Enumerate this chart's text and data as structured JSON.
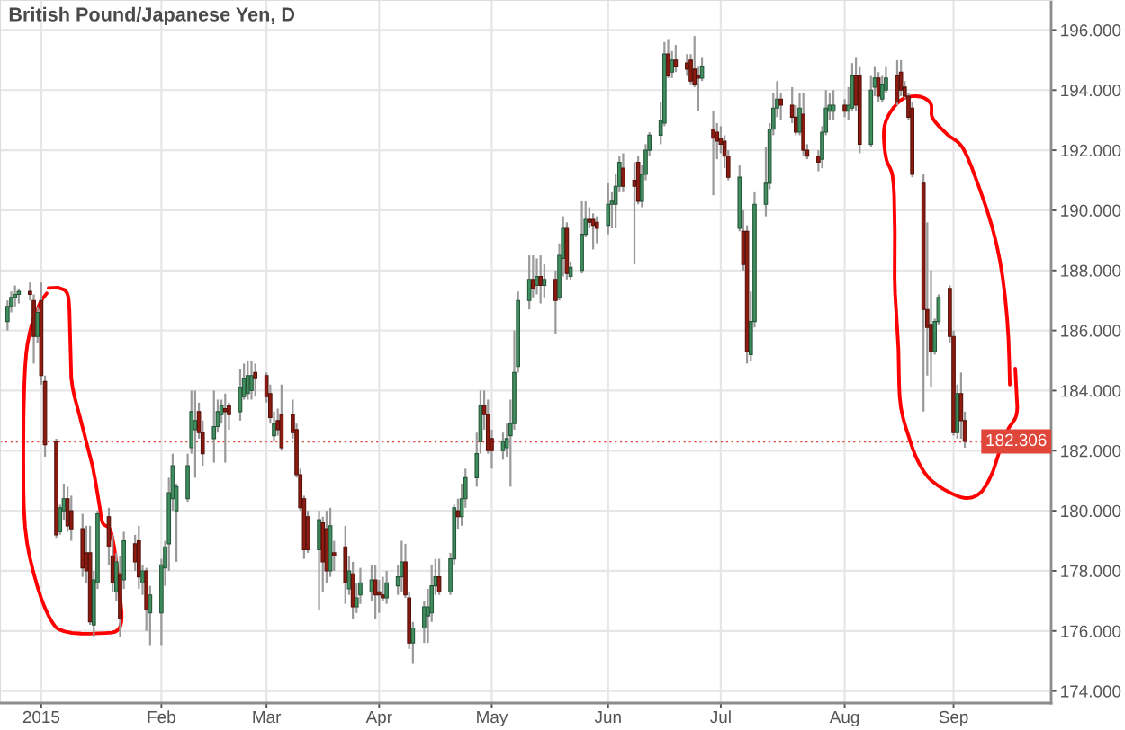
{
  "chart_data": {
    "type": "candlestick",
    "title": "British Pound/Japanese Yen, D",
    "x": [
      "2014-12-23",
      "2014-12-24",
      "2014-12-25",
      "2014-12-26",
      "2014-12-29",
      "2014-12-30",
      "2014-12-31",
      "2015-01-01",
      "2015-01-02",
      "2015-01-05",
      "2015-01-06",
      "2015-01-07",
      "2015-01-08",
      "2015-01-09",
      "2015-01-12",
      "2015-01-13",
      "2015-01-14",
      "2015-01-15",
      "2015-01-16",
      "2015-01-19",
      "2015-01-20",
      "2015-01-21",
      "2015-01-22",
      "2015-01-23",
      "2015-01-26",
      "2015-01-27",
      "2015-01-28",
      "2015-01-29",
      "2015-01-30",
      "2015-02-02",
      "2015-02-03",
      "2015-02-04",
      "2015-02-05",
      "2015-02-06",
      "2015-02-09",
      "2015-02-10",
      "2015-02-11",
      "2015-02-12",
      "2015-02-13",
      "2015-02-16",
      "2015-02-17",
      "2015-02-18",
      "2015-02-19",
      "2015-02-20",
      "2015-02-23",
      "2015-02-24",
      "2015-02-25",
      "2015-02-26",
      "2015-02-27",
      "2015-03-02",
      "2015-03-03",
      "2015-03-04",
      "2015-03-05",
      "2015-03-06",
      "2015-03-09",
      "2015-03-10",
      "2015-03-11",
      "2015-03-12",
      "2015-03-13",
      "2015-03-16",
      "2015-03-17",
      "2015-03-18",
      "2015-03-19",
      "2015-03-20",
      "2015-03-23",
      "2015-03-24",
      "2015-03-25",
      "2015-03-26",
      "2015-03-27",
      "2015-03-30",
      "2015-03-31",
      "2015-04-01",
      "2015-04-02",
      "2015-04-03",
      "2015-04-06",
      "2015-04-07",
      "2015-04-08",
      "2015-04-09",
      "2015-04-10",
      "2015-04-13",
      "2015-04-14",
      "2015-04-15",
      "2015-04-16",
      "2015-04-17",
      "2015-04-20",
      "2015-04-21",
      "2015-04-22",
      "2015-04-23",
      "2015-04-24",
      "2015-04-27",
      "2015-04-28",
      "2015-04-29",
      "2015-04-30",
      "2015-05-01",
      "2015-05-04",
      "2015-05-05",
      "2015-05-06",
      "2015-05-07",
      "2015-05-08",
      "2015-05-11",
      "2015-05-12",
      "2015-05-13",
      "2015-05-14",
      "2015-05-15",
      "2015-05-18",
      "2015-05-19",
      "2015-05-20",
      "2015-05-21",
      "2015-05-22",
      "2015-05-25",
      "2015-05-26",
      "2015-05-27",
      "2015-05-28",
      "2015-05-29",
      "2015-06-01",
      "2015-06-02",
      "2015-06-03",
      "2015-06-04",
      "2015-06-05",
      "2015-06-08",
      "2015-06-09",
      "2015-06-10",
      "2015-06-11",
      "2015-06-12",
      "2015-06-15",
      "2015-06-16",
      "2015-06-17",
      "2015-06-18",
      "2015-06-19",
      "2015-06-22",
      "2015-06-23",
      "2015-06-24",
      "2015-06-25",
      "2015-06-26",
      "2015-06-29",
      "2015-06-30",
      "2015-07-01",
      "2015-07-02",
      "2015-07-03",
      "2015-07-06",
      "2015-07-07",
      "2015-07-08",
      "2015-07-09",
      "2015-07-10",
      "2015-07-13",
      "2015-07-14",
      "2015-07-15",
      "2015-07-16",
      "2015-07-17",
      "2015-07-20",
      "2015-07-21",
      "2015-07-22",
      "2015-07-23",
      "2015-07-24",
      "2015-07-27",
      "2015-07-28",
      "2015-07-29",
      "2015-07-30",
      "2015-07-31",
      "2015-08-03",
      "2015-08-04",
      "2015-08-05",
      "2015-08-06",
      "2015-08-07",
      "2015-08-10",
      "2015-08-11",
      "2015-08-12",
      "2015-08-13",
      "2015-08-14",
      "2015-08-17",
      "2015-08-18",
      "2015-08-19",
      "2015-08-20",
      "2015-08-21",
      "2015-08-24",
      "2015-08-25",
      "2015-08-26",
      "2015-08-27",
      "2015-08-28",
      "2015-08-31",
      "2015-09-01",
      "2015-09-02",
      "2015-09-03",
      "2015-09-04"
    ],
    "ohlc": [
      [
        186.3,
        187.0,
        186.0,
        186.8
      ],
      [
        186.8,
        187.3,
        186.6,
        187.1
      ],
      [
        187.1,
        187.5,
        186.8,
        187.2
      ],
      [
        187.2,
        187.4,
        186.9,
        187.3
      ],
      [
        187.3,
        187.6,
        187.0,
        187.2
      ],
      [
        187.0,
        187.2,
        184.9,
        185.8
      ],
      [
        185.8,
        186.8,
        185.6,
        186.6
      ],
      [
        187.0,
        187.6,
        184.2,
        184.5
      ],
      [
        184.3,
        184.5,
        181.8,
        182.2
      ],
      [
        182.3,
        182.4,
        179.1,
        179.2
      ],
      [
        179.3,
        180.2,
        179.2,
        180.1
      ],
      [
        180.0,
        180.9,
        179.7,
        180.4
      ],
      [
        180.4,
        180.8,
        179.3,
        179.5
      ],
      [
        180.0,
        180.5,
        179.0,
        179.4
      ],
      [
        179.4,
        179.9,
        177.8,
        178.1
      ],
      [
        178.6,
        179.5,
        177.6,
        178.0
      ],
      [
        178.6,
        179.5,
        176.2,
        176.3
      ],
      [
        176.2,
        178.0,
        175.8,
        177.7
      ],
      [
        177.6,
        180.0,
        177.4,
        179.9
      ],
      [
        179.8,
        180.1,
        178.2,
        178.8
      ],
      [
        178.5,
        179.2,
        177.3,
        177.6
      ],
      [
        177.3,
        178.6,
        177.0,
        178.3
      ],
      [
        177.9,
        178.5,
        175.8,
        176.4
      ],
      [
        177.7,
        179.3,
        177.4,
        179.0
      ],
      [
        178.9,
        179.2,
        178.0,
        178.3
      ],
      [
        179.0,
        179.5,
        177.4,
        177.8
      ],
      [
        177.6,
        178.2,
        177.2,
        178.0
      ],
      [
        178.0,
        178.1,
        176.0,
        176.7
      ],
      [
        176.6,
        177.5,
        175.5,
        177.2
      ],
      [
        176.6,
        178.4,
        175.5,
        178.2
      ],
      [
        178.1,
        179.0,
        177.5,
        178.8
      ],
      [
        178.9,
        181.1,
        178.0,
        180.6
      ],
      [
        180.4,
        181.9,
        180.0,
        181.5
      ],
      [
        180.0,
        180.9,
        178.3,
        180.8
      ],
      [
        180.4,
        181.9,
        180.3,
        181.5
      ],
      [
        182.1,
        184.0,
        181.9,
        183.3
      ],
      [
        182.7,
        184.0,
        181.1,
        183.0
      ],
      [
        183.3,
        183.6,
        182.4,
        182.6
      ],
      [
        182.6,
        183.0,
        181.5,
        181.9
      ],
      [
        182.4,
        184.0,
        181.6,
        182.8
      ],
      [
        182.8,
        183.7,
        182.6,
        183.3
      ],
      [
        183.2,
        183.7,
        182.9,
        183.5
      ],
      [
        183.4,
        183.9,
        181.6,
        183.3
      ],
      [
        183.5,
        183.6,
        182.7,
        183.2
      ],
      [
        183.3,
        184.7,
        183.0,
        184.1
      ],
      [
        183.8,
        184.9,
        183.7,
        184.4
      ],
      [
        183.9,
        185.0,
        183.7,
        184.5
      ],
      [
        184.0,
        185.0,
        183.7,
        184.5
      ],
      [
        184.6,
        184.9,
        183.8,
        184.4
      ],
      [
        184.5,
        184.6,
        183.6,
        183.8
      ],
      [
        183.9,
        184.2,
        182.9,
        183.1
      ],
      [
        182.5,
        183.3,
        182.3,
        182.9
      ],
      [
        183.0,
        183.4,
        182.5,
        182.7
      ],
      [
        183.2,
        184.2,
        182.0,
        182.1
      ],
      [
        183.2,
        183.7,
        182.4,
        182.6
      ],
      [
        182.7,
        182.9,
        181.1,
        181.2
      ],
      [
        181.2,
        181.4,
        180.0,
        180.1
      ],
      [
        180.4,
        180.5,
        178.4,
        178.7
      ],
      [
        179.8,
        180.0,
        178.6,
        178.7
      ],
      [
        178.7,
        180.0,
        176.7,
        179.7
      ],
      [
        179.6,
        179.8,
        177.3,
        178.3
      ],
      [
        179.4,
        180.0,
        177.6,
        178.0
      ],
      [
        178.0,
        180.1,
        177.8,
        179.5
      ],
      [
        178.6,
        179.0,
        178.0,
        178.5
      ],
      [
        178.8,
        179.5,
        176.9,
        177.6
      ],
      [
        177.4,
        178.5,
        177.2,
        178.0
      ],
      [
        177.9,
        178.3,
        176.4,
        176.8
      ],
      [
        176.8,
        177.6,
        176.6,
        177.1
      ],
      [
        177.2,
        178.1,
        176.9,
        177.6
      ],
      [
        177.3,
        178.2,
        177.0,
        177.7
      ],
      [
        177.7,
        178.2,
        176.4,
        177.2
      ],
      [
        177.3,
        177.7,
        176.6,
        177.2
      ],
      [
        177.2,
        177.8,
        177.0,
        177.1
      ],
      [
        177.1,
        178.0,
        176.9,
        177.6
      ],
      [
        177.5,
        178.2,
        177.2,
        177.8
      ],
      [
        177.8,
        179.0,
        177.3,
        178.3
      ],
      [
        178.3,
        178.9,
        177.1,
        177.2
      ],
      [
        177.1,
        177.3,
        175.4,
        175.6
      ],
      [
        175.6,
        176.3,
        174.9,
        176.1
      ],
      [
        176.1,
        177.0,
        175.6,
        176.8
      ],
      [
        176.5,
        177.4,
        175.6,
        176.8
      ],
      [
        176.6,
        178.2,
        176.3,
        177.5
      ],
      [
        177.5,
        178.4,
        177.2,
        177.8
      ],
      [
        177.8,
        178.4,
        177.2,
        177.3
      ],
      [
        177.3,
        178.6,
        177.2,
        178.4
      ],
      [
        178.4,
        180.2,
        178.2,
        180.1
      ],
      [
        180.0,
        180.4,
        179.4,
        179.8
      ],
      [
        179.8,
        180.9,
        179.5,
        180.4
      ],
      [
        180.4,
        181.4,
        180.1,
        181.1
      ],
      [
        181.1,
        182.6,
        180.8,
        181.9
      ],
      [
        182.3,
        184.0,
        181.9,
        183.5
      ],
      [
        183.5,
        184.0,
        182.7,
        183.2
      ],
      [
        183.2,
        183.7,
        181.9,
        182.0
      ],
      [
        182.4,
        182.7,
        181.4,
        182.0
      ],
      [
        182.0,
        182.6,
        181.7,
        182.3
      ],
      [
        182.1,
        182.9,
        181.8,
        182.4
      ],
      [
        182.5,
        183.7,
        180.8,
        182.9
      ],
      [
        182.9,
        186.0,
        182.7,
        184.6
      ],
      [
        184.8,
        187.3,
        184.6,
        187.0
      ],
      [
        187.0,
        188.5,
        186.7,
        187.7
      ],
      [
        187.7,
        188.5,
        187.1,
        187.4
      ],
      [
        187.5,
        188.4,
        187.2,
        187.8
      ],
      [
        187.8,
        188.5,
        186.9,
        187.5
      ],
      [
        187.5,
        188.2,
        187.1,
        187.7
      ],
      [
        187.7,
        188.0,
        185.9,
        187.0
      ],
      [
        187.1,
        188.9,
        187.0,
        188.5
      ],
      [
        188.4,
        189.8,
        187.8,
        189.4
      ],
      [
        189.4,
        189.6,
        187.7,
        187.9
      ],
      [
        187.8,
        188.3,
        187.7,
        188.1
      ],
      [
        188.0,
        190.3,
        187.9,
        189.2
      ],
      [
        189.2,
        190.3,
        189.1,
        189.7
      ],
      [
        189.7,
        190.1,
        189.4,
        189.6
      ],
      [
        189.7,
        189.9,
        188.7,
        189.5
      ],
      [
        189.6,
        189.8,
        188.9,
        189.4
      ],
      [
        189.5,
        190.9,
        189.2,
        190.2
      ],
      [
        190.2,
        190.6,
        189.4,
        190.3
      ],
      [
        190.2,
        191.2,
        189.4,
        190.8
      ],
      [
        190.8,
        191.8,
        190.6,
        191.6
      ],
      [
        191.4,
        191.9,
        190.6,
        190.8
      ],
      [
        191.0,
        191.6,
        188.2,
        190.8
      ],
      [
        191.6,
        191.8,
        190.2,
        190.3
      ],
      [
        190.3,
        191.5,
        190.1,
        191.2
      ],
      [
        191.2,
        192.2,
        191.0,
        192.0
      ],
      [
        192.0,
        192.6,
        191.8,
        192.5
      ],
      [
        192.5,
        193.6,
        192.2,
        193.0
      ],
      [
        192.9,
        195.6,
        192.8,
        195.2
      ],
      [
        195.2,
        195.7,
        194.4,
        194.5
      ],
      [
        194.6,
        195.3,
        194.4,
        195.0
      ],
      [
        195.0,
        195.5,
        194.6,
        194.8
      ],
      [
        194.9,
        195.2,
        194.5,
        194.7
      ],
      [
        195.0,
        195.2,
        194.2,
        194.3
      ],
      [
        194.7,
        195.8,
        194.1,
        194.2
      ],
      [
        194.5,
        194.8,
        193.3,
        194.4
      ],
      [
        194.4,
        195.1,
        194.3,
        194.8
      ],
      [
        192.7,
        193.3,
        190.5,
        192.4
      ],
      [
        192.6,
        192.9,
        191.7,
        192.3
      ],
      [
        192.4,
        192.8,
        191.9,
        192.2
      ],
      [
        192.3,
        192.5,
        191.4,
        191.8
      ],
      [
        191.8,
        192.0,
        191.0,
        191.1
      ],
      [
        189.4,
        191.5,
        189.3,
        191.1
      ],
      [
        189.3,
        190.0,
        188.0,
        188.2
      ],
      [
        189.3,
        189.5,
        184.9,
        185.3
      ],
      [
        185.2,
        187.3,
        185.0,
        186.3
      ],
      [
        186.3,
        190.6,
        186.1,
        190.2
      ],
      [
        190.2,
        192.1,
        189.8,
        190.9
      ],
      [
        190.9,
        192.9,
        190.7,
        192.7
      ],
      [
        192.7,
        193.9,
        192.5,
        193.4
      ],
      [
        193.4,
        194.3,
        193.1,
        193.7
      ],
      [
        193.7,
        193.9,
        193.0,
        193.5
      ],
      [
        193.5,
        194.1,
        192.9,
        193.1
      ],
      [
        193.1,
        193.5,
        192.5,
        192.6
      ],
      [
        192.6,
        193.9,
        192.5,
        193.4
      ],
      [
        193.2,
        193.9,
        191.8,
        192.0
      ],
      [
        192.0,
        192.2,
        191.7,
        191.8
      ],
      [
        191.8,
        192.0,
        191.3,
        191.6
      ],
      [
        191.7,
        192.8,
        191.4,
        192.6
      ],
      [
        192.6,
        194.0,
        192.5,
        193.4
      ],
      [
        193.3,
        193.9,
        193.0,
        193.5
      ],
      [
        193.3,
        194.0,
        193.0,
        193.5
      ],
      [
        193.5,
        193.7,
        193.1,
        193.3
      ],
      [
        193.3,
        194.1,
        193.0,
        193.5
      ],
      [
        193.4,
        194.9,
        193.3,
        194.5
      ],
      [
        194.5,
        195.1,
        193.3,
        193.5
      ],
      [
        194.5,
        194.8,
        191.9,
        192.2
      ],
      [
        192.2,
        194.5,
        192.1,
        194.0
      ],
      [
        194.1,
        194.8,
        193.8,
        194.4
      ],
      [
        194.4,
        194.6,
        193.6,
        193.8
      ],
      [
        193.7,
        194.5,
        193.6,
        194.2
      ],
      [
        194.0,
        194.8,
        193.9,
        194.4
      ],
      [
        194.5,
        195.0,
        193.5,
        193.6
      ],
      [
        194.6,
        195.0,
        193.8,
        194.0
      ],
      [
        194.1,
        194.3,
        193.7,
        193.8
      ],
      [
        193.8,
        193.9,
        193.0,
        193.1
      ],
      [
        193.4,
        193.6,
        191.1,
        191.2
      ],
      [
        190.9,
        191.2,
        183.3,
        186.7
      ],
      [
        186.7,
        189.6,
        184.5,
        186.1
      ],
      [
        186.2,
        188.0,
        184.1,
        185.3
      ],
      [
        185.3,
        186.4,
        185.2,
        186.3
      ],
      [
        186.3,
        187.2,
        186.2,
        187.1
      ],
      [
        187.4,
        187.5,
        185.6,
        185.8
      ],
      [
        185.8,
        186.0,
        182.5,
        182.6
      ],
      [
        182.6,
        184.2,
        182.4,
        183.9
      ],
      [
        183.9,
        184.6,
        182.4,
        183.0
      ],
      [
        183.0,
        183.3,
        182.1,
        182.306
      ]
    ],
    "colors": [
      "#3f8f5f",
      "#3f8f5f",
      "#3f8f5f",
      "#3f8f5f",
      "#8e1b10",
      "#8e1b10",
      "#3f8f5f",
      "#8e1b10",
      "#8e1b10",
      "#8e1b10",
      "#3f8f5f",
      "#3f8f5f",
      "#8e1b10",
      "#8e1b10",
      "#8e1b10",
      "#8e1b10",
      "#8e1b10",
      "#3f8f5f",
      "#3f8f5f",
      "#8e1b10",
      "#8e1b10",
      "#3f8f5f",
      "#8e1b10",
      "#3f8f5f",
      "#8e1b10",
      "#8e1b10",
      "#3f8f5f",
      "#8e1b10",
      "#3f8f5f",
      "#3f8f5f",
      "#3f8f5f",
      "#3f8f5f",
      "#3f8f5f",
      "#3f8f5f",
      "#3f8f5f",
      "#3f8f5f",
      "#3f8f5f",
      "#8e1b10",
      "#8e1b10",
      "#3f8f5f",
      "#3f8f5f",
      "#3f8f5f",
      "#8e1b10",
      "#8e1b10",
      "#3f8f5f",
      "#3f8f5f",
      "#3f8f5f",
      "#3f8f5f",
      "#8e1b10",
      "#8e1b10",
      "#8e1b10",
      "#3f8f5f",
      "#8e1b10",
      "#8e1b10",
      "#8e1b10",
      "#8e1b10",
      "#8e1b10",
      "#8e1b10",
      "#8e1b10",
      "#3f8f5f",
      "#8e1b10",
      "#8e1b10",
      "#3f8f5f",
      "#8e1b10",
      "#8e1b10",
      "#3f8f5f",
      "#8e1b10",
      "#3f8f5f",
      "#3f8f5f",
      "#3f8f5f",
      "#8e1b10",
      "#8e1b10",
      "#8e1b10",
      "#3f8f5f",
      "#3f8f5f",
      "#3f8f5f",
      "#8e1b10",
      "#8e1b10",
      "#3f8f5f",
      "#3f8f5f",
      "#3f8f5f",
      "#3f8f5f",
      "#3f8f5f",
      "#8e1b10",
      "#3f8f5f",
      "#3f8f5f",
      "#8e1b10",
      "#3f8f5f",
      "#3f8f5f",
      "#3f8f5f",
      "#3f8f5f",
      "#8e1b10",
      "#8e1b10",
      "#8e1b10",
      "#3f8f5f",
      "#3f8f5f",
      "#3f8f5f",
      "#3f8f5f",
      "#3f8f5f",
      "#3f8f5f",
      "#8e1b10",
      "#3f8f5f",
      "#8e1b10",
      "#3f8f5f",
      "#8e1b10",
      "#3f8f5f",
      "#3f8f5f",
      "#8e1b10",
      "#3f8f5f",
      "#3f8f5f",
      "#3f8f5f",
      "#8e1b10",
      "#8e1b10",
      "#8e1b10",
      "#3f8f5f",
      "#3f8f5f",
      "#3f8f5f",
      "#3f8f5f",
      "#8e1b10",
      "#8e1b10",
      "#8e1b10",
      "#3f8f5f",
      "#3f8f5f",
      "#3f8f5f",
      "#3f8f5f",
      "#3f8f5f",
      "#8e1b10",
      "#3f8f5f",
      "#8e1b10",
      "#8e1b10",
      "#8e1b10",
      "#8e1b10",
      "#8e1b10",
      "#3f8f5f",
      "#8e1b10",
      "#8e1b10",
      "#8e1b10",
      "#8e1b10",
      "#8e1b10",
      "#3f8f5f",
      "#8e1b10",
      "#8e1b10",
      "#3f8f5f",
      "#3f8f5f",
      "#3f8f5f",
      "#3f8f5f",
      "#3f8f5f",
      "#3f8f5f",
      "#8e1b10",
      "#8e1b10",
      "#8e1b10",
      "#3f8f5f",
      "#8e1b10",
      "#8e1b10",
      "#8e1b10",
      "#3f8f5f",
      "#3f8f5f",
      "#3f8f5f",
      "#3f8f5f",
      "#8e1b10",
      "#3f8f5f",
      "#3f8f5f",
      "#8e1b10",
      "#8e1b10",
      "#3f8f5f",
      "#3f8f5f",
      "#8e1b10",
      "#3f8f5f",
      "#3f8f5f",
      "#8e1b10",
      "#8e1b10",
      "#8e1b10",
      "#8e1b10",
      "#8e1b10",
      "#8e1b10",
      "#8e1b10",
      "#8e1b10",
      "#3f8f5f",
      "#3f8f5f",
      "#8e1b10",
      "#8e1b10",
      "#3f8f5f",
      "#8e1b10",
      "#8e1b10"
    ],
    "xlim": [
      "2014-12-21",
      "2015-09-27"
    ],
    "xticks": [
      {
        "value": "2015-01-01",
        "label": "2015"
      },
      {
        "value": "2015-02-02",
        "label": "Feb"
      },
      {
        "value": "2015-03-02",
        "label": "Mar"
      },
      {
        "value": "2015-04-01",
        "label": "Apr"
      },
      {
        "value": "2015-05-01",
        "label": "May"
      },
      {
        "value": "2015-06-01",
        "label": "Jun"
      },
      {
        "value": "2015-07-01",
        "label": "Jul"
      },
      {
        "value": "2015-08-03",
        "label": "Aug"
      },
      {
        "value": "2015-09-01",
        "label": "Sep"
      }
    ],
    "ylim": [
      173.6,
      197.0
    ],
    "yticks": [
      {
        "value": 174,
        "label": "174.000"
      },
      {
        "value": 176,
        "label": "176.000"
      },
      {
        "value": 178,
        "label": "178.000"
      },
      {
        "value": 180,
        "label": "180.000"
      },
      {
        "value": 182,
        "label": "182.000"
      },
      {
        "value": 184,
        "label": "184.000"
      },
      {
        "value": 186,
        "label": "186.000"
      },
      {
        "value": 188,
        "label": "188.000"
      },
      {
        "value": 190,
        "label": "190.000"
      },
      {
        "value": 192,
        "label": "192.000"
      },
      {
        "value": 194,
        "label": "194.000"
      },
      {
        "value": 196,
        "label": "196.000"
      }
    ],
    "grid": true,
    "ref_lines": [
      {
        "axis": "y",
        "value": 182.306,
        "label": "182.306",
        "color": "#e0473a",
        "line_style": "dotted"
      }
    ]
  }
}
